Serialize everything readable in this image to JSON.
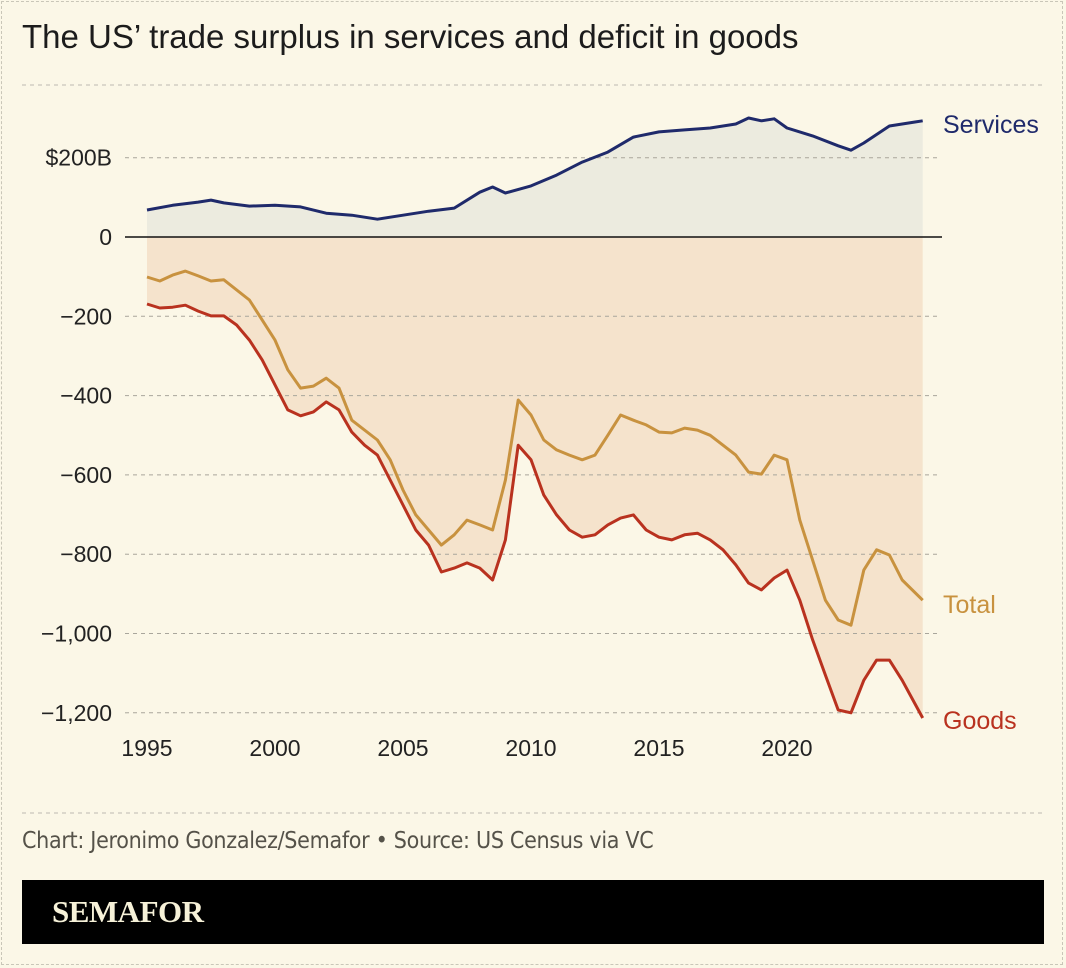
{
  "title": "The US’ trade surplus in services and deficit in goods",
  "credit": "Chart: Jeronimo Gonzalez/Semafor • Source: US Census via VC",
  "brand": "SEMAFOR",
  "colors": {
    "services": "#1f2a6b",
    "total": "#c8923f",
    "goods": "#b9321f",
    "background": "#fbf7e7",
    "surplus_fill": "#ecebdf",
    "deficit_fill": "#f5e3cc"
  },
  "chart_data": {
    "type": "line",
    "title": "The US’ trade surplus in services and deficit in goods",
    "xlabel": "",
    "ylabel": "",
    "xlim": [
      1995,
      2025.3
    ],
    "ylim": [
      -1200,
      300
    ],
    "grid": true,
    "x_ticks": [
      "1995",
      "2000",
      "2005",
      "2010",
      "2015",
      "2020"
    ],
    "y_ticks": [
      {
        "value": 200,
        "label": "$200B"
      },
      {
        "value": 0,
        "label": "0"
      },
      {
        "value": -200,
        "label": "−200"
      },
      {
        "value": -400,
        "label": "−400"
      },
      {
        "value": -600,
        "label": "−600"
      },
      {
        "value": -800,
        "label": "−800"
      },
      {
        "value": -1000,
        "label": "−1,000"
      },
      {
        "value": -1200,
        "label": "−1,200"
      }
    ],
    "series": [
      {
        "name": "Services",
        "points": [
          [
            1995,
            68
          ],
          [
            1996,
            80
          ],
          [
            1997,
            88
          ],
          [
            1997.5,
            93
          ],
          [
            1998,
            86
          ],
          [
            1999,
            78
          ],
          [
            2000,
            80
          ],
          [
            2001,
            76
          ],
          [
            2002,
            60
          ],
          [
            2003,
            55
          ],
          [
            2004,
            45
          ],
          [
            2005,
            55
          ],
          [
            2006,
            65
          ],
          [
            2007,
            73
          ],
          [
            2008,
            113
          ],
          [
            2008.5,
            126
          ],
          [
            2009,
            111
          ],
          [
            2010,
            129
          ],
          [
            2011,
            156
          ],
          [
            2012,
            189
          ],
          [
            2013,
            214
          ],
          [
            2014,
            252
          ],
          [
            2015,
            265
          ],
          [
            2016,
            270
          ],
          [
            2017,
            275
          ],
          [
            2018,
            285
          ],
          [
            2018.5,
            300
          ],
          [
            2019,
            293
          ],
          [
            2019.5,
            298
          ],
          [
            2020,
            275
          ],
          [
            2021,
            255
          ],
          [
            2022,
            230
          ],
          [
            2022.5,
            219
          ],
          [
            2023,
            237
          ],
          [
            2024,
            280
          ],
          [
            2025,
            290
          ],
          [
            2025.3,
            293
          ]
        ]
      },
      {
        "name": "Total",
        "points": [
          [
            1995,
            -101
          ],
          [
            1995.5,
            -111
          ],
          [
            1996,
            -96
          ],
          [
            1996.5,
            -86
          ],
          [
            1997,
            -98
          ],
          [
            1997.5,
            -111
          ],
          [
            1998,
            -108
          ],
          [
            1999,
            -159
          ],
          [
            2000,
            -260
          ],
          [
            2000.5,
            -335
          ],
          [
            2001,
            -381
          ],
          [
            2001.5,
            -376
          ],
          [
            2002,
            -356
          ],
          [
            2002.5,
            -381
          ],
          [
            2003,
            -462
          ],
          [
            2004,
            -512
          ],
          [
            2004.5,
            -562
          ],
          [
            2005,
            -638
          ],
          [
            2005.5,
            -701
          ],
          [
            2006,
            -739
          ],
          [
            2006.5,
            -777
          ],
          [
            2007,
            -751
          ],
          [
            2007.5,
            -714
          ],
          [
            2008,
            -726
          ],
          [
            2008.5,
            -739
          ],
          [
            2009,
            -613
          ],
          [
            2009.5,
            -411
          ],
          [
            2010,
            -449
          ],
          [
            2010.5,
            -512
          ],
          [
            2011,
            -537
          ],
          [
            2011.5,
            -550
          ],
          [
            2012,
            -562
          ],
          [
            2012.5,
            -550
          ],
          [
            2013,
            -500
          ],
          [
            2013.5,
            -449
          ],
          [
            2014,
            -462
          ],
          [
            2014.5,
            -474
          ],
          [
            2015,
            -492
          ],
          [
            2015.5,
            -494
          ],
          [
            2016,
            -482
          ],
          [
            2016.5,
            -487
          ],
          [
            2017,
            -500
          ],
          [
            2017.5,
            -525
          ],
          [
            2018,
            -550
          ],
          [
            2018.5,
            -593
          ],
          [
            2019,
            -598
          ],
          [
            2019.5,
            -550
          ],
          [
            2020,
            -562
          ],
          [
            2020.5,
            -714
          ],
          [
            2021,
            -815
          ],
          [
            2021.5,
            -916
          ],
          [
            2022,
            -966
          ],
          [
            2022.5,
            -979
          ],
          [
            2023,
            -840
          ],
          [
            2023.5,
            -789
          ],
          [
            2024,
            -802
          ],
          [
            2024.5,
            -865
          ],
          [
            2025.3,
            -916
          ]
        ]
      },
      {
        "name": "Goods",
        "points": [
          [
            1995,
            -169
          ],
          [
            1995.5,
            -179
          ],
          [
            1996,
            -177
          ],
          [
            1996.5,
            -172
          ],
          [
            1997,
            -187
          ],
          [
            1997.5,
            -199
          ],
          [
            1998,
            -199
          ],
          [
            1998.5,
            -222
          ],
          [
            1999,
            -260
          ],
          [
            1999.5,
            -310
          ],
          [
            2000,
            -373
          ],
          [
            2000.5,
            -436
          ],
          [
            2001,
            -451
          ],
          [
            2001.5,
            -441
          ],
          [
            2002,
            -416
          ],
          [
            2002.5,
            -436
          ],
          [
            2003,
            -492
          ],
          [
            2003.5,
            -525
          ],
          [
            2004,
            -550
          ],
          [
            2004.5,
            -613
          ],
          [
            2005,
            -676
          ],
          [
            2005.5,
            -739
          ],
          [
            2006,
            -777
          ],
          [
            2006.5,
            -845
          ],
          [
            2007,
            -835
          ],
          [
            2007.5,
            -822
          ],
          [
            2008,
            -835
          ],
          [
            2008.5,
            -865
          ],
          [
            2009,
            -764
          ],
          [
            2009.5,
            -525
          ],
          [
            2010,
            -562
          ],
          [
            2010.5,
            -651
          ],
          [
            2011,
            -701
          ],
          [
            2011.5,
            -739
          ],
          [
            2012,
            -757
          ],
          [
            2012.5,
            -751
          ],
          [
            2013,
            -726
          ],
          [
            2013.5,
            -709
          ],
          [
            2014,
            -701
          ],
          [
            2014.5,
            -739
          ],
          [
            2015,
            -757
          ],
          [
            2015.5,
            -764
          ],
          [
            2016,
            -751
          ],
          [
            2016.5,
            -747
          ],
          [
            2017,
            -764
          ],
          [
            2017.5,
            -789
          ],
          [
            2018,
            -827
          ],
          [
            2018.5,
            -873
          ],
          [
            2019,
            -890
          ],
          [
            2019.5,
            -860
          ],
          [
            2020,
            -840
          ],
          [
            2020.5,
            -916
          ],
          [
            2021,
            -1016
          ],
          [
            2021.5,
            -1105
          ],
          [
            2022,
            -1193
          ],
          [
            2022.5,
            -1200
          ],
          [
            2023,
            -1118
          ],
          [
            2023.5,
            -1067
          ],
          [
            2024,
            -1067
          ],
          [
            2024.5,
            -1118
          ],
          [
            2025.3,
            -1213
          ]
        ]
      }
    ]
  }
}
